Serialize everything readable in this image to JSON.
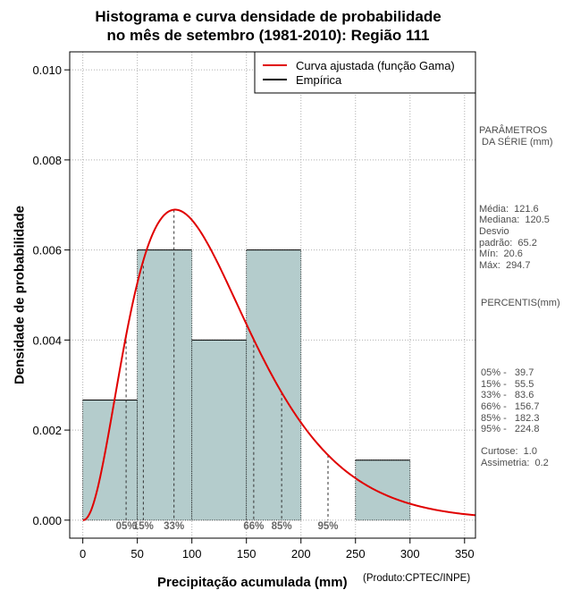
{
  "chart_data": {
    "type": "histogram",
    "title_line1": "Histograma e curva densidade de probabilidade",
    "title_line2": "no mês de setembro (1981-2010): Região 111",
    "xlabel": "Precipitação acumulada (mm)",
    "ylabel": "Densidade de probabilidade",
    "credit": "(Produto:CPTEC/INPE)",
    "xlim": [
      -12,
      360
    ],
    "ylim": [
      -0.0004,
      0.0104
    ],
    "x_ticks": [
      0,
      50,
      100,
      150,
      200,
      250,
      300,
      350
    ],
    "y_ticks": [
      0.0,
      0.002,
      0.004,
      0.006,
      0.008,
      0.01
    ],
    "y_tick_labels": [
      "0.000",
      "0.002",
      "0.004",
      "0.006",
      "0.008",
      "0.010"
    ],
    "grid": true,
    "bins": [
      {
        "start": 0,
        "end": 50,
        "density": 0.002667
      },
      {
        "start": 50,
        "end": 100,
        "density": 0.006
      },
      {
        "start": 100,
        "end": 150,
        "density": 0.004
      },
      {
        "start": 150,
        "end": 200,
        "density": 0.006
      },
      {
        "start": 200,
        "end": 250,
        "density": 0.0
      },
      {
        "start": 250,
        "end": 300,
        "density": 0.001333
      }
    ],
    "fit_curve": {
      "name": "Curva ajustada (função Gama)",
      "distribution": "gamma",
      "shape": 3.3,
      "scale": 36.8,
      "color": "#e00000"
    },
    "empirical": {
      "name": "Empírica",
      "color": "#000000"
    },
    "legend_position": "top-right",
    "percentiles": [
      {
        "label": "05%",
        "value": 39.7
      },
      {
        "label": "15%",
        "value": 55.5
      },
      {
        "label": "33%",
        "value": 83.6
      },
      {
        "label": "66%",
        "value": 156.7
      },
      {
        "label": "85%",
        "value": 182.3
      },
      {
        "label": "95%",
        "value": 224.8
      }
    ],
    "bar_color": "#b4cccc"
  },
  "side_panel": {
    "params_header": "PARÂMETROS\n DA SÉRIE (mm)",
    "params_body": "Média:  121.6\nMediana:  120.5\nDesvio\npadrão:  65.2\nMín:  20.6\nMáx:  294.7",
    "percentis_header": "PERCENTIS(mm)",
    "percentis_body": "05% -   39.7\n15% -   55.5\n33% -   83.6\n66% -   156.7\n85% -   182.3\n95% -   224.8\n\nCurtose:  1.0\nAssimetria:  0.2"
  }
}
